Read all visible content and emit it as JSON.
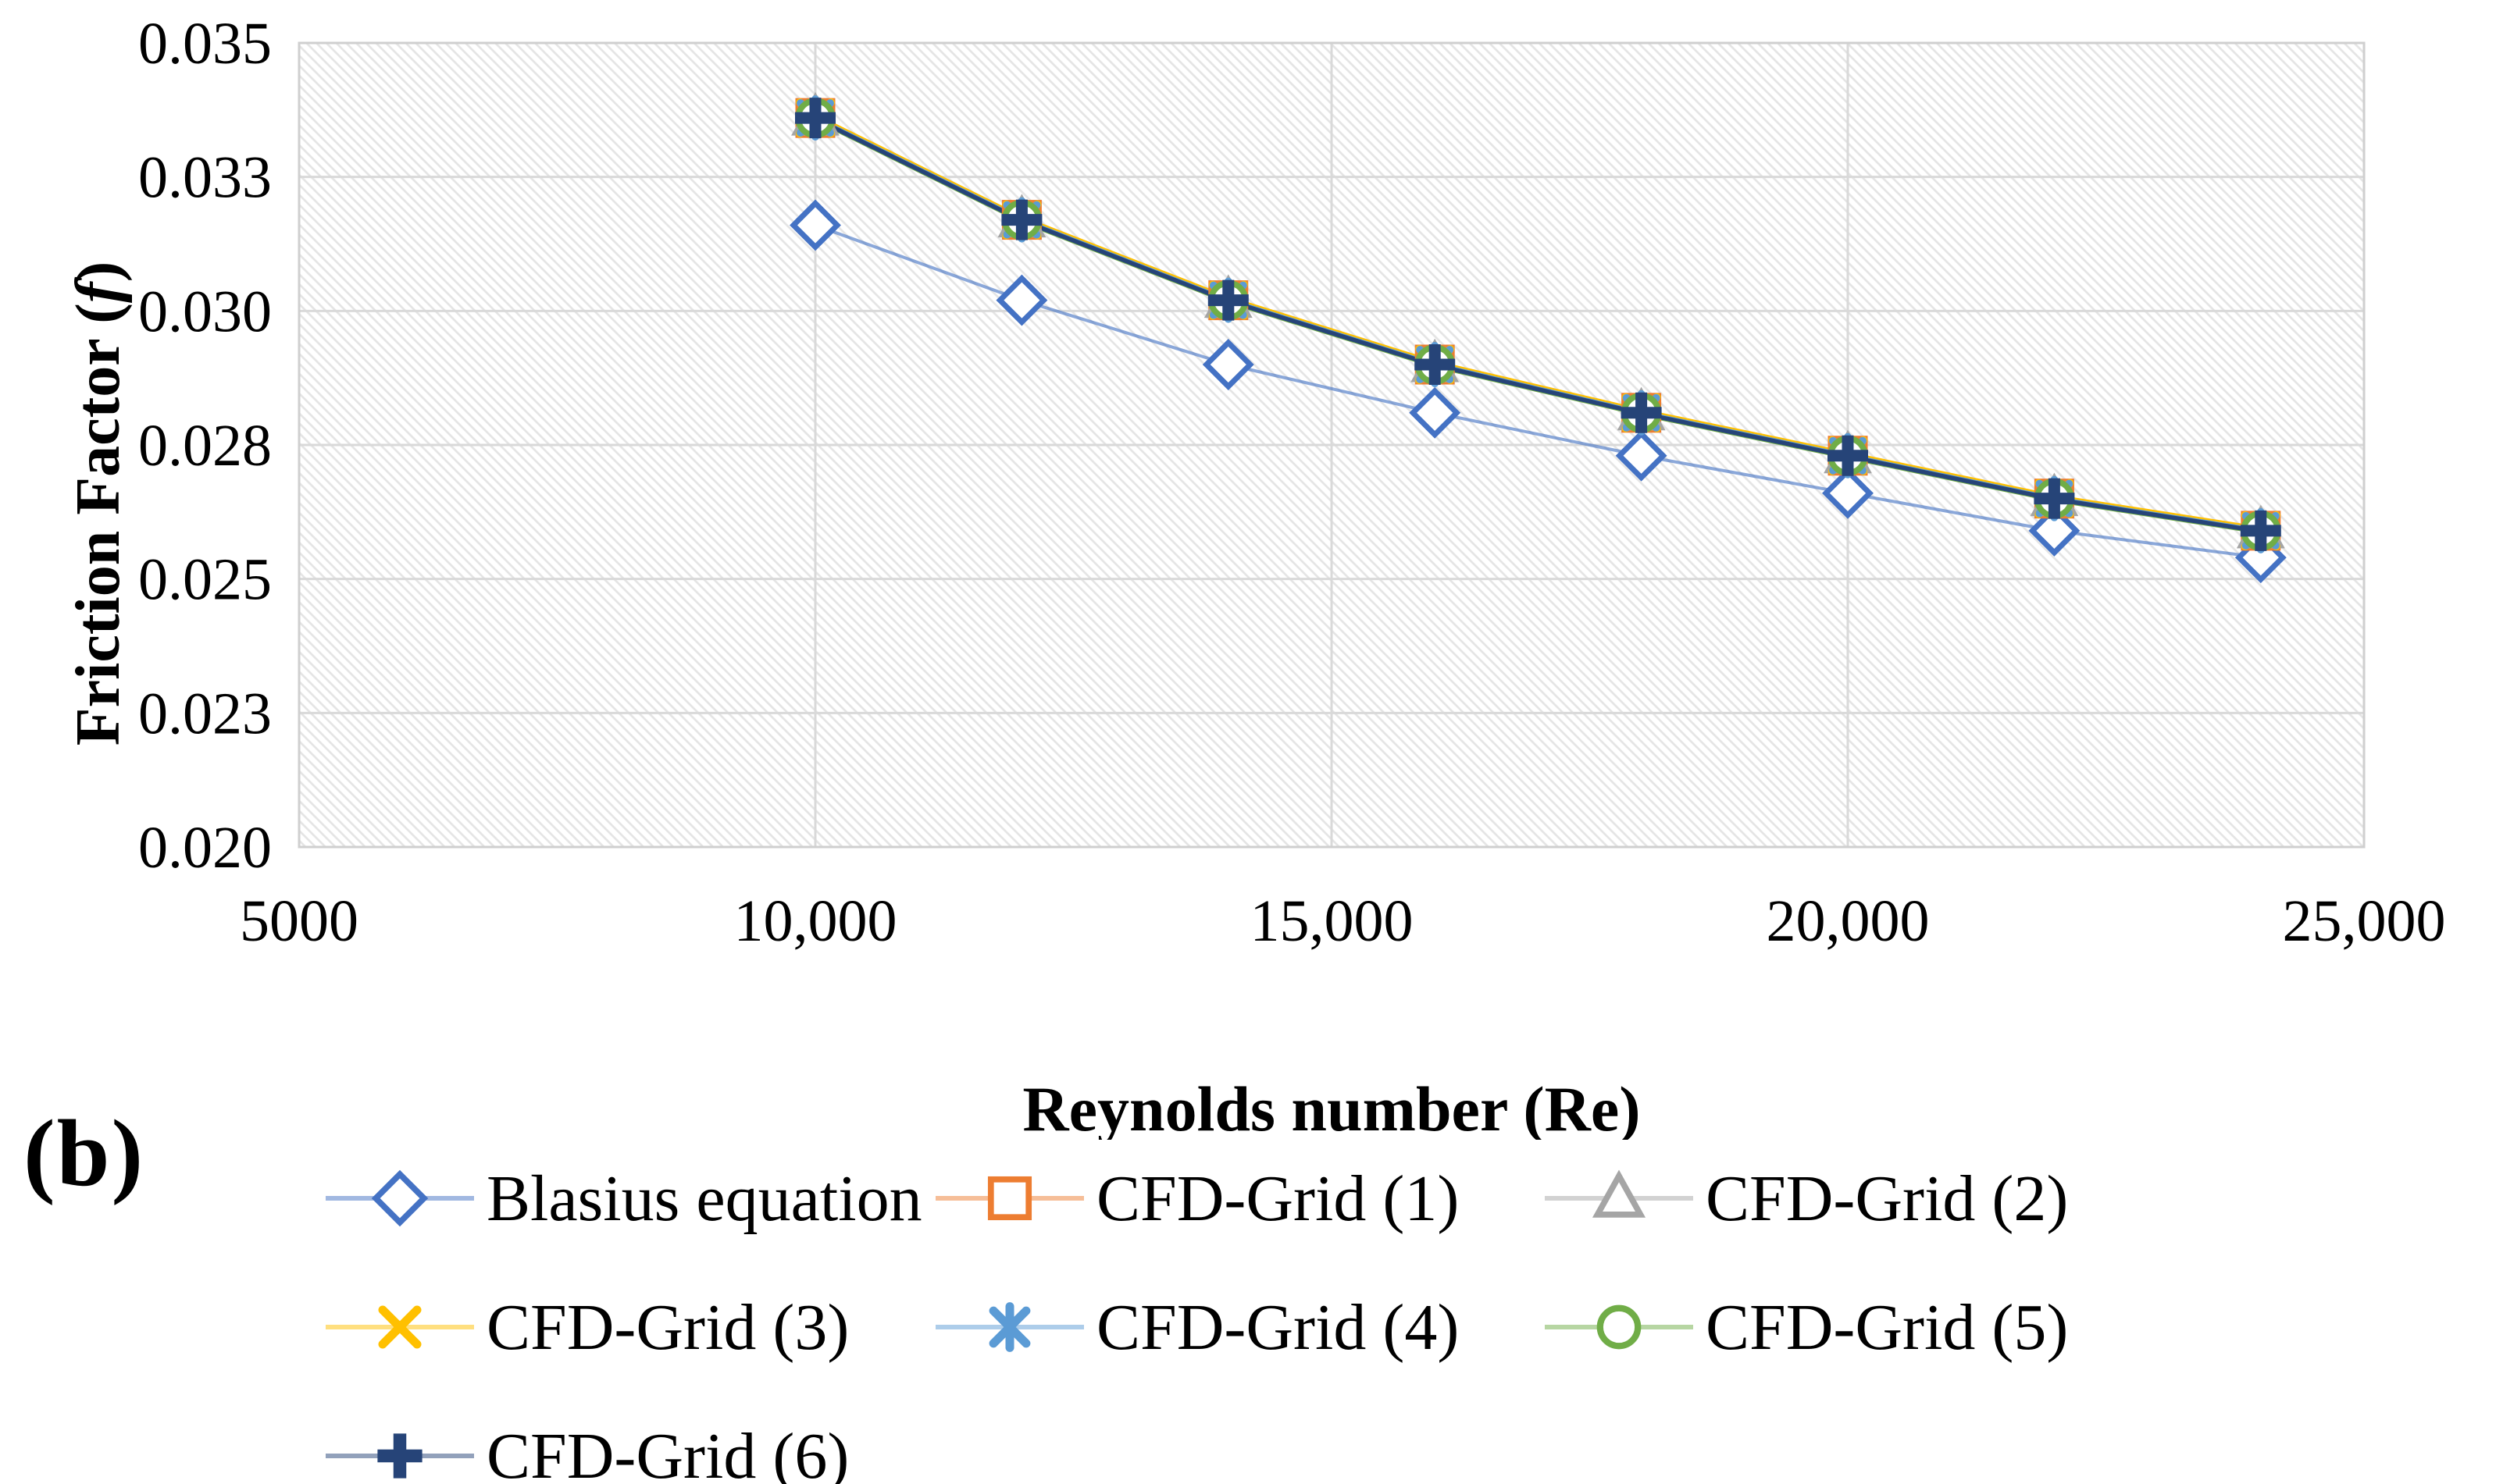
{
  "panel_label": "(b)",
  "chart_data": {
    "type": "line",
    "title": "",
    "xlabel": "Reynolds number (Re)",
    "ylabel": "Friction Factor (f)",
    "xlim": [
      5000,
      25000
    ],
    "ylim": [
      0.02,
      0.035
    ],
    "grid": true,
    "plot_background": "diagonal-hatch",
    "legend_position": "bottom",
    "x_ticks": [
      {
        "v": 5000,
        "label": "5000"
      },
      {
        "v": 10000,
        "label": "10,000"
      },
      {
        "v": 15000,
        "label": "15,000"
      },
      {
        "v": 20000,
        "label": "20,000"
      },
      {
        "v": 25000,
        "label": "25,000"
      }
    ],
    "y_ticks": [
      {
        "v": 0.035,
        "label": "0.035"
      },
      {
        "v": 0.0325,
        "label": "0.033"
      },
      {
        "v": 0.03,
        "label": "0.030"
      },
      {
        "v": 0.0275,
        "label": "0.028"
      },
      {
        "v": 0.025,
        "label": "0.025"
      },
      {
        "v": 0.0225,
        "label": "0.023"
      },
      {
        "v": 0.02,
        "label": "0.020"
      }
    ],
    "x": [
      10000,
      12000,
      14000,
      16000,
      18000,
      20000,
      22000,
      24000
    ],
    "series": [
      {
        "name": "Blasius equation",
        "marker": "diamond",
        "color": "#4472C4",
        "values": [
          0.0316,
          0.0302,
          0.029,
          0.0281,
          0.0273,
          0.0266,
          0.0259,
          0.0254
        ]
      },
      {
        "name": "CFD-Grid (1)",
        "marker": "square",
        "color": "#ED7D31",
        "values": [
          0.0336,
          0.0317,
          0.0302,
          0.029,
          0.0281,
          0.0273,
          0.0265,
          0.0259
        ]
      },
      {
        "name": "CFD-Grid (2)",
        "marker": "triangle",
        "color": "#A5A5A5",
        "values": [
          0.0336,
          0.0317,
          0.0302,
          0.029,
          0.0281,
          0.0273,
          0.0265,
          0.0259
        ]
      },
      {
        "name": "CFD-Grid (3)",
        "marker": "x",
        "color": "#FFC000",
        "values": [
          0.0336,
          0.0317,
          0.0302,
          0.029,
          0.0281,
          0.0273,
          0.0265,
          0.0259
        ]
      },
      {
        "name": "CFD-Grid (4)",
        "marker": "asterisk",
        "color": "#5B9BD5",
        "values": [
          0.0336,
          0.0317,
          0.0302,
          0.029,
          0.0281,
          0.0273,
          0.0265,
          0.0259
        ]
      },
      {
        "name": "CFD-Grid (5)",
        "marker": "circle",
        "color": "#70AD47",
        "values": [
          0.0336,
          0.0317,
          0.0302,
          0.029,
          0.0281,
          0.0273,
          0.0265,
          0.0259
        ]
      },
      {
        "name": "CFD-Grid (6)",
        "marker": "plus",
        "color": "#264478",
        "values": [
          0.0336,
          0.0317,
          0.0302,
          0.029,
          0.0281,
          0.0273,
          0.0265,
          0.0259
        ]
      }
    ]
  },
  "colors": {
    "gridline": "#d9d9d9",
    "plot_border": "#cfcfcf",
    "hatch_line": "#e4e4e4",
    "text": "#000000"
  }
}
